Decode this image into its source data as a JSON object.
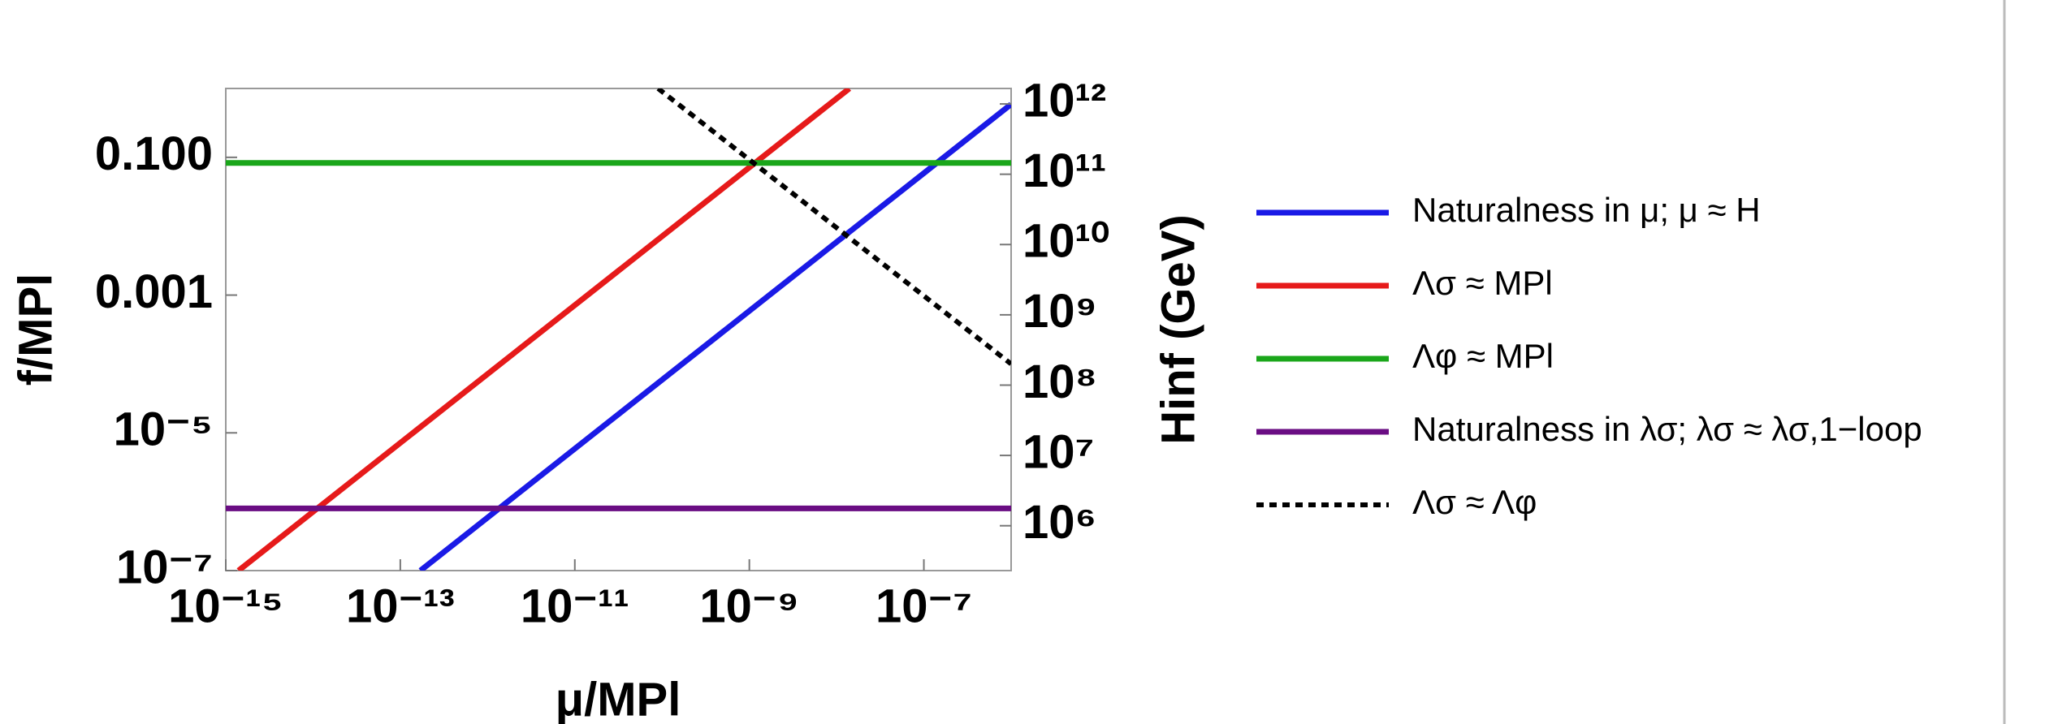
{
  "chart_data": {
    "type": "line",
    "xlabel": "μ/MPl",
    "ylabel": "f/MPl",
    "y2label": "Hinf (GeV)",
    "xscale": "log",
    "yscale": "log",
    "y2scale": "log",
    "xlim": [
      1e-15,
      1e-06
    ],
    "ylim": [
      1e-07,
      1
    ],
    "y2lim": [
      230000,
      1660000000000.0
    ],
    "xticks": [
      {
        "value": 1e-15,
        "label": "10⁻¹⁵"
      },
      {
        "value": 1e-13,
        "label": "10⁻¹³"
      },
      {
        "value": 1e-11,
        "label": "10⁻¹¹"
      },
      {
        "value": 1e-09,
        "label": "10⁻⁹"
      },
      {
        "value": 1e-07,
        "label": "10⁻⁷"
      }
    ],
    "yticks": [
      {
        "value": 1e-07,
        "label": "10⁻⁷"
      },
      {
        "value": 1e-05,
        "label": "10⁻⁵"
      },
      0.001,
      {
        "value": 0.1,
        "label": "0.100"
      }
    ],
    "y2ticks": [
      {
        "value": 1000000.0,
        "label": "10⁶"
      },
      {
        "value": 10000000.0,
        "label": "10⁷"
      },
      {
        "value": 100000000.0,
        "label": "10⁸"
      },
      {
        "value": 1000000000.0,
        "label": "10⁹"
      },
      {
        "value": 10000000000.0,
        "label": "10¹⁰"
      },
      {
        "value": 100000000000.0,
        "label": "10¹¹"
      },
      {
        "value": 1000000000000.0,
        "label": "10¹²"
      }
    ],
    "series": [
      {
        "name": "Naturalness in μ; μ ≈ H",
        "color": "#1a1ae6",
        "x": [
          1.7e-13,
          1e-06
        ],
        "values": [
          1e-07,
          0.59
        ]
      },
      {
        "name": "Λσ ≈ MPl",
        "color": "#e61a1a",
        "x": [
          1.4e-15,
          1.4e-08
        ],
        "values": [
          1e-07,
          1
        ]
      },
      {
        "name": "Λφ ≈ MPl",
        "color": "#1aa61a",
        "x": [
          1e-15,
          1e-06
        ],
        "values": [
          0.083,
          0.083
        ]
      },
      {
        "name": "Naturalness in λσ; λσ ≈ λσ,1−loop",
        "color": "#6a0d83",
        "x": [
          1e-15,
          1e-06
        ],
        "values": [
          8e-07,
          8e-07
        ]
      },
      {
        "name": "Λσ ≈ Λφ",
        "color": "#000000",
        "dash": true,
        "x": [
          9e-11,
          1e-06
        ],
        "values": [
          1,
          0.0001
        ]
      }
    ]
  }
}
